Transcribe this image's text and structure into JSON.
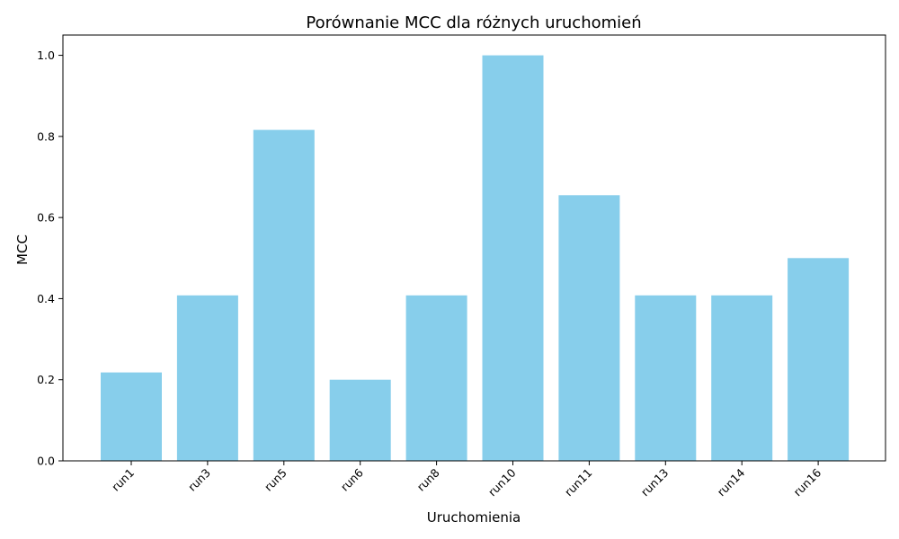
{
  "chart_data": {
    "type": "bar",
    "title": "Porównanie MCC dla różnych uruchomień",
    "xlabel": "Uruchomienia",
    "ylabel": "MCC",
    "categories": [
      "run1",
      "run3",
      "run5",
      "run6",
      "run8",
      "run10",
      "run11",
      "run13",
      "run14",
      "run16"
    ],
    "values": [
      0.218,
      0.408,
      0.816,
      0.2,
      0.408,
      1.0,
      0.655,
      0.408,
      0.408,
      0.5
    ],
    "ylim": [
      0,
      1.05
    ],
    "yticks": [
      "0.0",
      "0.2",
      "0.4",
      "0.6",
      "0.8",
      "1.0"
    ],
    "bar_color": "#87CEEB",
    "grid": false,
    "legend": "none"
  }
}
